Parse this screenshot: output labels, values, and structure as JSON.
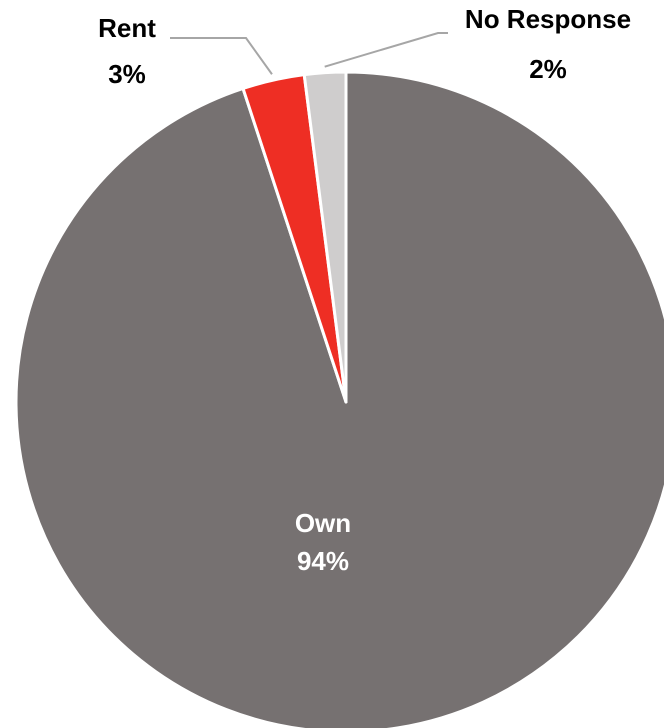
{
  "chart_data": {
    "type": "pie",
    "title": "",
    "slices": [
      {
        "name": "Own",
        "value": 94,
        "label": "94%",
        "color": "#767171"
      },
      {
        "name": "Rent",
        "value": 3,
        "label": "3%",
        "color": "#ee2e24"
      },
      {
        "name": "No Response",
        "value": 2,
        "label": "2%",
        "color": "#cfcdcd"
      }
    ],
    "start_angle_deg": 0,
    "direction": "clockwise",
    "legend": "none",
    "data_labels": "category name and percentage"
  }
}
